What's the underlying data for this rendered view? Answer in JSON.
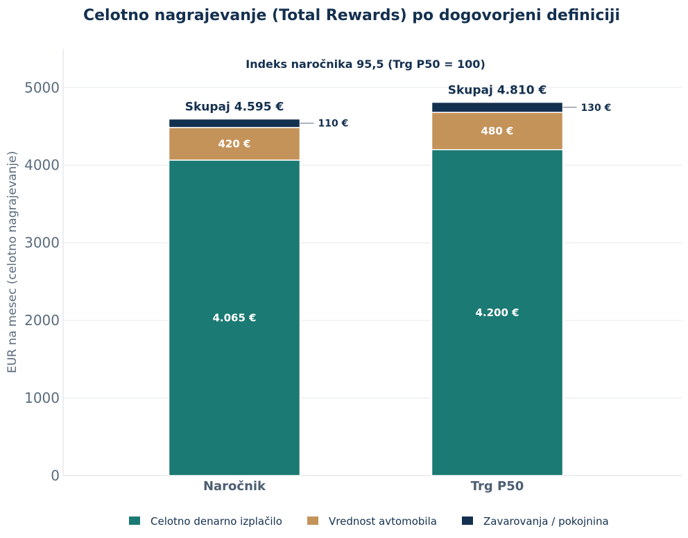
{
  "chart_data": {
    "type": "bar",
    "stacked": true,
    "title": "Celotno nagrajevanje (Total Rewards) po dogovorjeni definiciji",
    "annotation": "Indeks naročnika 95,5  (Trg P50 = 100)",
    "ylabel": "EUR na mesec (celotno nagrajevanje)",
    "xlabel": "",
    "ylim": [
      0,
      5500
    ],
    "yticks": [
      0,
      1000,
      2000,
      3000,
      4000,
      5000
    ],
    "grid": true,
    "legend_position": "bottom",
    "categories": [
      "Naročnik",
      "Trg P50"
    ],
    "totals": [
      4595,
      4810
    ],
    "total_labels": [
      "Skupaj 4.595 €",
      "Skupaj 4.810 €"
    ],
    "series": [
      {
        "name": "Celotno denarno izplačilo",
        "values": [
          4065,
          4200
        ],
        "labels": [
          "4.065 €",
          "4.200 €"
        ],
        "color": "#1b7a73"
      },
      {
        "name": "Vrednost avtomobila",
        "values": [
          420,
          480
        ],
        "labels": [
          "420 €",
          "480 €"
        ],
        "color": "#c4935a"
      },
      {
        "name": "Zavarovanja / pokojnina",
        "values": [
          110,
          130
        ],
        "labels": [
          "110 €",
          "130 €"
        ],
        "color": "#14304f"
      }
    ]
  }
}
